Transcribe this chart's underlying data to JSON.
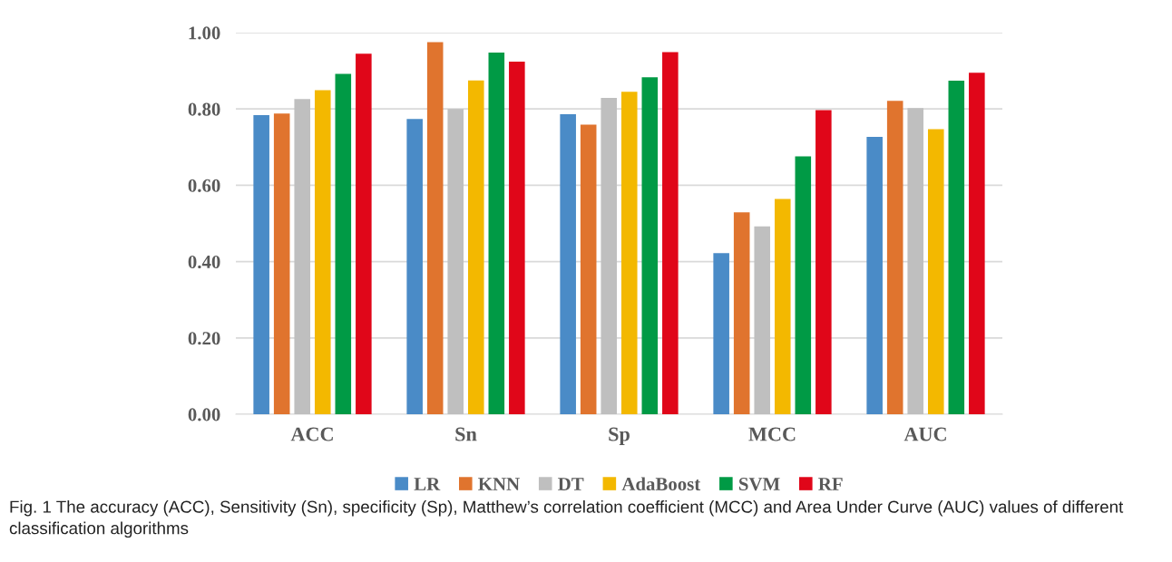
{
  "chart_data": {
    "type": "bar",
    "categories": [
      "ACC",
      "Sn",
      "Sp",
      "MCC",
      "AUC"
    ],
    "series": [
      {
        "name": "LR",
        "color": "#4a8bc7",
        "values": [
          0.784,
          0.774,
          0.786,
          0.422,
          0.727
        ]
      },
      {
        "name": "KNN",
        "color": "#e0742e",
        "values": [
          0.788,
          0.975,
          0.759,
          0.529,
          0.821
        ]
      },
      {
        "name": "DT",
        "color": "#bfbfbf",
        "values": [
          0.826,
          0.8,
          0.829,
          0.492,
          0.802
        ]
      },
      {
        "name": "AdaBoost",
        "color": "#f3b800",
        "values": [
          0.849,
          0.875,
          0.845,
          0.564,
          0.747
        ]
      },
      {
        "name": "SVM",
        "color": "#009a45",
        "values": [
          0.892,
          0.948,
          0.883,
          0.676,
          0.874
        ]
      },
      {
        "name": "RF",
        "color": "#e00619",
        "values": [
          0.945,
          0.924,
          0.949,
          0.797,
          0.895
        ]
      }
    ],
    "ylim": [
      0,
      1
    ],
    "yticks": [
      {
        "value": 0,
        "label": "0.00"
      },
      {
        "value": 0.2,
        "label": "0.20"
      },
      {
        "value": 0.4,
        "label": "0.40"
      },
      {
        "value": 0.6,
        "label": "0.60"
      },
      {
        "value": 0.8,
        "label": "0.80"
      },
      {
        "value": 1,
        "label": "1.00"
      }
    ],
    "grid": "y",
    "legend": "bottom",
    "annotations": [
      "Fig. 1 The accuracy (ACC), Sensitivity (Sn), specificity (Sp), Matthew’s correlation coefficient (MCC) and Area Under Curve (AUC) values of different classification algorithms"
    ]
  }
}
